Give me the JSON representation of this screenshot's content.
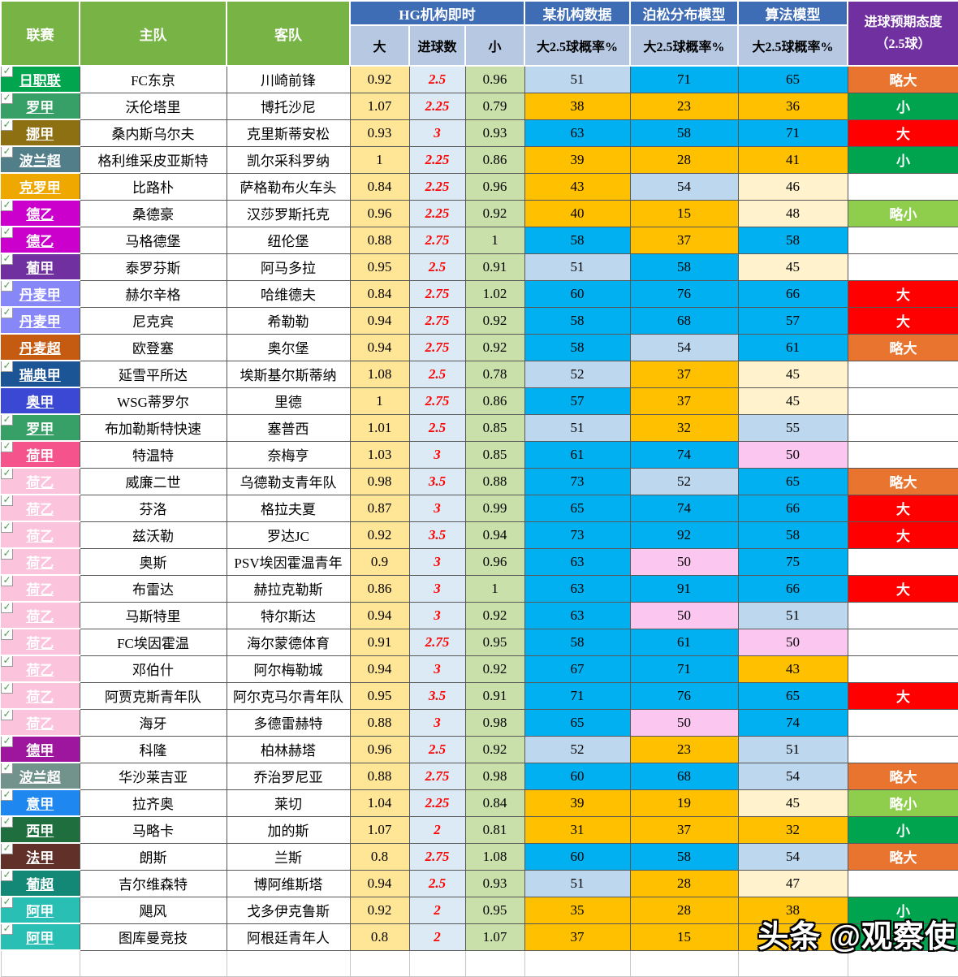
{
  "header": {
    "league": "联赛",
    "home": "主队",
    "away": "客队",
    "hg_group": "HG机构即时",
    "over": "大",
    "goals": "进球数",
    "under": "小",
    "org_group": "某机构数据",
    "poisson_group": "泊松分布模型",
    "algo_group": "算法模型",
    "prob_label": "大2.5球概率%",
    "attitude_line1": "进球预期态度",
    "attitude_line2": "（2.5球）"
  },
  "palette": {
    "header_green": "#78B445",
    "header_blue": "#3E6CB5",
    "header_subblue": "#B6C8E2",
    "header_purple": "#7030A0",
    "over_bg": "#FFE596",
    "goals_bg": "#DCEAF5",
    "goals_text": "#FF0000",
    "under_bg": "#C9E0AB",
    "cell": {
      "blue": "#00B0F0",
      "lightblue": "#BDD7EE",
      "orange": "#FFC000",
      "cream": "#FFF2CC",
      "pink": "#FBC7F0",
      "white": "#FFFFFF"
    },
    "attitude": {
      "orange": "#E97430",
      "red": "#FF0000",
      "green": "#00A44F",
      "lightgreen": "#8FCE4D",
      "white": "#FFFFFF"
    }
  },
  "watermark": "头条 @观察使",
  "rows": [
    {
      "league": "日职联",
      "league_color": "#00A54E",
      "checked": true,
      "home": "FC东京",
      "away": "川崎前锋",
      "over": "0.92",
      "goals": "2.5",
      "under": "0.96",
      "p1": "51",
      "p1c": "lightblue",
      "p2": "71",
      "p2c": "blue",
      "p3": "65",
      "p3c": "blue",
      "att": "略大",
      "att_bg": "orange"
    },
    {
      "league": "罗甲",
      "league_color": "#36A066",
      "checked": true,
      "home": "沃伦塔里",
      "away": "博托沙尼",
      "over": "1.07",
      "goals": "2.25",
      "under": "0.79",
      "p1": "38",
      "p1c": "orange",
      "p2": "23",
      "p2c": "orange",
      "p3": "36",
      "p3c": "orange",
      "att": "小",
      "att_bg": "green"
    },
    {
      "league": "挪甲",
      "league_color": "#8C7012",
      "checked": true,
      "home": "桑内斯乌尔夫",
      "away": "克里斯蒂安松",
      "over": "0.93",
      "goals": "3",
      "under": "0.93",
      "p1": "63",
      "p1c": "blue",
      "p2": "58",
      "p2c": "blue",
      "p3": "71",
      "p3c": "blue",
      "att": "大",
      "att_bg": "red"
    },
    {
      "league": "波兰超",
      "league_color": "#527E8A",
      "checked": true,
      "home": "格利维采皮亚斯特",
      "away": "凯尔采科罗纳",
      "over": "1",
      "goals": "2.25",
      "under": "0.86",
      "p1": "39",
      "p1c": "orange",
      "p2": "28",
      "p2c": "orange",
      "p3": "41",
      "p3c": "orange",
      "att": "小",
      "att_bg": "green"
    },
    {
      "league": "克罗甲",
      "league_color": "#EFA800",
      "checked": false,
      "home": "比路朴",
      "away": "萨格勒布火车头",
      "over": "0.84",
      "goals": "2.25",
      "under": "0.96",
      "p1": "43",
      "p1c": "orange",
      "p2": "54",
      "p2c": "lightblue",
      "p3": "46",
      "p3c": "cream",
      "att": "",
      "att_bg": "white"
    },
    {
      "league": "德乙",
      "league_color": "#CC00CC",
      "checked": true,
      "home": "桑德豪",
      "away": "汉莎罗斯托克",
      "over": "0.96",
      "goals": "2.25",
      "under": "0.92",
      "p1": "40",
      "p1c": "orange",
      "p2": "15",
      "p2c": "orange",
      "p3": "48",
      "p3c": "cream",
      "att": "略小",
      "att_bg": "lightgreen"
    },
    {
      "league": "德乙",
      "league_color": "#CC00CC",
      "checked": true,
      "home": "马格德堡",
      "away": "纽伦堡",
      "over": "0.88",
      "goals": "2.75",
      "under": "1",
      "p1": "58",
      "p1c": "blue",
      "p2": "37",
      "p2c": "orange",
      "p3": "58",
      "p3c": "blue",
      "att": "",
      "att_bg": "white"
    },
    {
      "league": "葡甲",
      "league_color": "#7030A0",
      "checked": true,
      "home": "泰罗芬斯",
      "away": "阿马多拉",
      "over": "0.95",
      "goals": "2.5",
      "under": "0.91",
      "p1": "51",
      "p1c": "lightblue",
      "p2": "58",
      "p2c": "blue",
      "p3": "45",
      "p3c": "cream",
      "att": "",
      "att_bg": "white"
    },
    {
      "league": "丹麦甲",
      "league_color": "#8787F7",
      "checked": true,
      "home": "赫尔辛格",
      "away": "哈维德夫",
      "over": "0.84",
      "goals": "2.75",
      "under": "1.02",
      "p1": "60",
      "p1c": "blue",
      "p2": "76",
      "p2c": "blue",
      "p3": "66",
      "p3c": "blue",
      "att": "大",
      "att_bg": "red"
    },
    {
      "league": "丹麦甲",
      "league_color": "#8787F7",
      "checked": true,
      "home": "尼克宾",
      "away": "希勒勒",
      "over": "0.94",
      "goals": "2.75",
      "under": "0.92",
      "p1": "58",
      "p1c": "blue",
      "p2": "68",
      "p2c": "blue",
      "p3": "57",
      "p3c": "blue",
      "att": "大",
      "att_bg": "red"
    },
    {
      "league": "丹麦超",
      "league_color": "#C55A11",
      "checked": false,
      "home": "欧登塞",
      "away": "奥尔堡",
      "over": "0.94",
      "goals": "2.75",
      "under": "0.92",
      "p1": "58",
      "p1c": "blue",
      "p2": "54",
      "p2c": "lightblue",
      "p3": "61",
      "p3c": "blue",
      "att": "略大",
      "att_bg": "orange"
    },
    {
      "league": "瑞典甲",
      "league_color": "#1B5596",
      "checked": true,
      "home": "延雪平所达",
      "away": "埃斯基尔斯蒂纳",
      "over": "1.08",
      "goals": "2.5",
      "under": "0.78",
      "p1": "52",
      "p1c": "lightblue",
      "p2": "37",
      "p2c": "orange",
      "p3": "45",
      "p3c": "cream",
      "att": "",
      "att_bg": "white"
    },
    {
      "league": "奥甲",
      "league_color": "#3A48D4",
      "checked": false,
      "home": "WSG蒂罗尔",
      "away": "里德",
      "over": "1",
      "goals": "2.75",
      "under": "0.86",
      "p1": "57",
      "p1c": "blue",
      "p2": "37",
      "p2c": "orange",
      "p3": "45",
      "p3c": "cream",
      "att": "",
      "att_bg": "white"
    },
    {
      "league": "罗甲",
      "league_color": "#36A066",
      "checked": true,
      "home": "布加勒斯特快速",
      "away": "塞普西",
      "over": "1.01",
      "goals": "2.5",
      "under": "0.85",
      "p1": "51",
      "p1c": "lightblue",
      "p2": "32",
      "p2c": "orange",
      "p3": "55",
      "p3c": "lightblue",
      "att": "",
      "att_bg": "white"
    },
    {
      "league": "荷甲",
      "league_color": "#F4538B",
      "checked": true,
      "home": "特温特",
      "away": "奈梅亨",
      "over": "1.03",
      "goals": "3",
      "under": "0.85",
      "p1": "61",
      "p1c": "blue",
      "p2": "74",
      "p2c": "blue",
      "p3": "50",
      "p3c": "pink",
      "att": "",
      "att_bg": "white"
    },
    {
      "league": "荷乙",
      "league_color": "#FBC3DC",
      "checked": true,
      "home": "威廉二世",
      "away": "乌德勒支青年队",
      "over": "0.98",
      "goals": "3.5",
      "under": "0.88",
      "p1": "73",
      "p1c": "blue",
      "p2": "52",
      "p2c": "lightblue",
      "p3": "65",
      "p3c": "blue",
      "att": "略大",
      "att_bg": "orange"
    },
    {
      "league": "荷乙",
      "league_color": "#FBC3DC",
      "checked": true,
      "home": "芬洛",
      "away": "格拉夫夏",
      "over": "0.87",
      "goals": "3",
      "under": "0.99",
      "p1": "65",
      "p1c": "blue",
      "p2": "74",
      "p2c": "blue",
      "p3": "66",
      "p3c": "blue",
      "att": "大",
      "att_bg": "red"
    },
    {
      "league": "荷乙",
      "league_color": "#FBC3DC",
      "checked": true,
      "home": "兹沃勒",
      "away": "罗达JC",
      "over": "0.92",
      "goals": "3.5",
      "under": "0.94",
      "p1": "73",
      "p1c": "blue",
      "p2": "92",
      "p2c": "blue",
      "p3": "58",
      "p3c": "blue",
      "att": "大",
      "att_bg": "red"
    },
    {
      "league": "荷乙",
      "league_color": "#FBC3DC",
      "checked": true,
      "home": "奥斯",
      "away": "PSV埃因霍温青年",
      "over": "0.9",
      "goals": "3",
      "under": "0.96",
      "p1": "63",
      "p1c": "blue",
      "p2": "50",
      "p2c": "pink",
      "p3": "75",
      "p3c": "blue",
      "att": "",
      "att_bg": "white"
    },
    {
      "league": "荷乙",
      "league_color": "#FBC3DC",
      "checked": true,
      "home": "布雷达",
      "away": "赫拉克勒斯",
      "over": "0.86",
      "goals": "3",
      "under": "1",
      "p1": "63",
      "p1c": "blue",
      "p2": "91",
      "p2c": "blue",
      "p3": "66",
      "p3c": "blue",
      "att": "大",
      "att_bg": "red"
    },
    {
      "league": "荷乙",
      "league_color": "#FBC3DC",
      "checked": true,
      "home": "马斯特里",
      "away": "特尔斯达",
      "over": "0.94",
      "goals": "3",
      "under": "0.92",
      "p1": "63",
      "p1c": "blue",
      "p2": "50",
      "p2c": "pink",
      "p3": "51",
      "p3c": "lightblue",
      "att": "",
      "att_bg": "white"
    },
    {
      "league": "荷乙",
      "league_color": "#FBC3DC",
      "checked": true,
      "home": "FC埃因霍温",
      "away": "海尔蒙德体育",
      "over": "0.91",
      "goals": "2.75",
      "under": "0.95",
      "p1": "58",
      "p1c": "blue",
      "p2": "61",
      "p2c": "blue",
      "p3": "50",
      "p3c": "pink",
      "att": "",
      "att_bg": "white"
    },
    {
      "league": "荷乙",
      "league_color": "#FBC3DC",
      "checked": true,
      "home": "邓伯什",
      "away": "阿尔梅勒城",
      "over": "0.94",
      "goals": "3",
      "under": "0.92",
      "p1": "67",
      "p1c": "blue",
      "p2": "71",
      "p2c": "blue",
      "p3": "43",
      "p3c": "orange",
      "att": "",
      "att_bg": "white"
    },
    {
      "league": "荷乙",
      "league_color": "#FBC3DC",
      "checked": true,
      "home": "阿贾克斯青年队",
      "away": "阿尔克马尔青年队",
      "over": "0.95",
      "goals": "3.5",
      "under": "0.91",
      "p1": "71",
      "p1c": "blue",
      "p2": "76",
      "p2c": "blue",
      "p3": "65",
      "p3c": "blue",
      "att": "大",
      "att_bg": "red"
    },
    {
      "league": "荷乙",
      "league_color": "#FBC3DC",
      "checked": true,
      "home": "海牙",
      "away": "多德雷赫特",
      "over": "0.88",
      "goals": "3",
      "under": "0.98",
      "p1": "65",
      "p1c": "blue",
      "p2": "50",
      "p2c": "pink",
      "p3": "74",
      "p3c": "blue",
      "att": "",
      "att_bg": "white"
    },
    {
      "league": "德甲",
      "league_color": "#9E169E",
      "checked": true,
      "home": "科隆",
      "away": "柏林赫塔",
      "over": "0.96",
      "goals": "2.5",
      "under": "0.92",
      "p1": "52",
      "p1c": "lightblue",
      "p2": "23",
      "p2c": "orange",
      "p3": "51",
      "p3c": "lightblue",
      "att": "",
      "att_bg": "white"
    },
    {
      "league": "波兰超",
      "league_color": "#71938C",
      "checked": true,
      "home": "华沙莱吉亚",
      "away": "乔治罗尼亚",
      "over": "0.88",
      "goals": "2.75",
      "under": "0.98",
      "p1": "60",
      "p1c": "blue",
      "p2": "68",
      "p2c": "blue",
      "p3": "54",
      "p3c": "lightblue",
      "att": "略大",
      "att_bg": "orange"
    },
    {
      "league": "意甲",
      "league_color": "#1E87F0",
      "checked": true,
      "home": "拉齐奥",
      "away": "莱切",
      "over": "1.04",
      "goals": "2.25",
      "under": "0.84",
      "p1": "39",
      "p1c": "orange",
      "p2": "19",
      "p2c": "orange",
      "p3": "45",
      "p3c": "cream",
      "att": "略小",
      "att_bg": "lightgreen"
    },
    {
      "league": "西甲",
      "league_color": "#1F6E3E",
      "checked": true,
      "home": "马略卡",
      "away": "加的斯",
      "over": "1.07",
      "goals": "2",
      "under": "0.81",
      "p1": "31",
      "p1c": "orange",
      "p2": "37",
      "p2c": "orange",
      "p3": "32",
      "p3c": "orange",
      "att": "小",
      "att_bg": "green"
    },
    {
      "league": "法甲",
      "league_color": "#613029",
      "checked": true,
      "home": "朗斯",
      "away": "兰斯",
      "over": "0.8",
      "goals": "2.75",
      "under": "1.08",
      "p1": "60",
      "p1c": "blue",
      "p2": "58",
      "p2c": "blue",
      "p3": "54",
      "p3c": "lightblue",
      "att": "略大",
      "att_bg": "orange"
    },
    {
      "league": "葡超",
      "league_color": "#148876",
      "checked": true,
      "home": "吉尔维森特",
      "away": "博阿维斯塔",
      "over": "0.94",
      "goals": "2.5",
      "under": "0.93",
      "p1": "51",
      "p1c": "lightblue",
      "p2": "28",
      "p2c": "orange",
      "p3": "47",
      "p3c": "cream",
      "att": "",
      "att_bg": "white"
    },
    {
      "league": "阿甲",
      "league_color": "#2ABFB4",
      "checked": true,
      "home": "飓风",
      "away": "戈多伊克鲁斯",
      "over": "0.92",
      "goals": "2",
      "under": "0.95",
      "p1": "35",
      "p1c": "orange",
      "p2": "28",
      "p2c": "orange",
      "p3": "38",
      "p3c": "orange",
      "att": "小",
      "att_bg": "green"
    },
    {
      "league": "阿甲",
      "league_color": "#2ABFB4",
      "checked": true,
      "home": "图库曼竞技",
      "away": "阿根廷青年人",
      "over": "0.8",
      "goals": "2",
      "under": "1.07",
      "p1": "37",
      "p1c": "orange",
      "p2": "15",
      "p2c": "orange",
      "p3": "",
      "p3c": "orange",
      "att": "",
      "att_bg": "green"
    }
  ]
}
